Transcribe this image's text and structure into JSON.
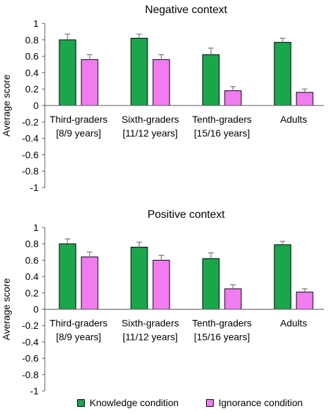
{
  "chart_data": [
    {
      "type": "bar",
      "title": "Negative context",
      "ylabel": "Average score",
      "ylim": [
        -1,
        1
      ],
      "ytick_step": 0.2,
      "grid": false,
      "categories": [
        [
          "Third-graders",
          "[8/9 years]"
        ],
        [
          "Sixth-graders",
          "[11/12 years]"
        ],
        [
          "Tenth-graders",
          "[15/16 years]"
        ],
        [
          "Adults"
        ]
      ],
      "series": [
        {
          "name": "Knowledge condition",
          "color": "#1aa64b",
          "values": [
            0.8,
            0.82,
            0.62,
            0.77
          ],
          "errors": [
            0.07,
            0.05,
            0.08,
            0.05
          ]
        },
        {
          "name": "Ignorance condition",
          "color": "#f07cf0",
          "values": [
            0.56,
            0.56,
            0.18,
            0.16
          ],
          "errors": [
            0.06,
            0.06,
            0.05,
            0.04
          ]
        }
      ]
    },
    {
      "type": "bar",
      "title": "Positive context",
      "ylabel": "Average score",
      "ylim": [
        -1,
        1
      ],
      "ytick_step": 0.2,
      "grid": false,
      "categories": [
        [
          "Third-graders",
          "[8/9 years]"
        ],
        [
          "Sixth-graders",
          "[11/12 years]"
        ],
        [
          "Tenth-graders",
          "[15/16 years]"
        ],
        [
          "Adults"
        ]
      ],
      "series": [
        {
          "name": "Knowledge condition",
          "color": "#1aa64b",
          "values": [
            0.8,
            0.76,
            0.62,
            0.79
          ],
          "errors": [
            0.06,
            0.06,
            0.07,
            0.04
          ]
        },
        {
          "name": "Ignorance condition",
          "color": "#f07cf0",
          "values": [
            0.64,
            0.6,
            0.25,
            0.21
          ],
          "errors": [
            0.06,
            0.06,
            0.05,
            0.04
          ]
        }
      ]
    }
  ],
  "legend": {
    "placement": "bottom",
    "items": [
      {
        "label": "Knowledge condition",
        "color": "#1aa64b"
      },
      {
        "label": "Ignorance condition",
        "color": "#f07cf0"
      }
    ]
  }
}
